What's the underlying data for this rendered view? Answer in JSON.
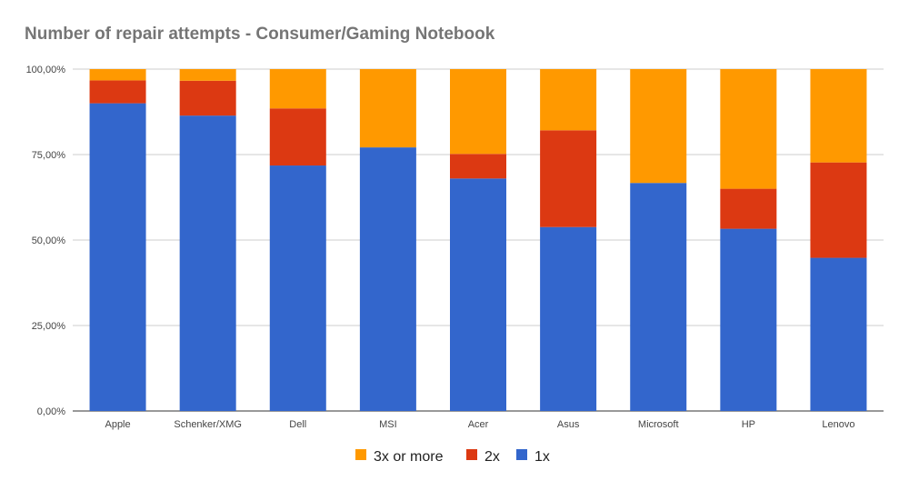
{
  "chart_data": {
    "type": "bar",
    "stacked": true,
    "title": "Number of repair attempts - Consumer/Gaming Notebook",
    "xlabel": "",
    "ylabel": "",
    "ylim": [
      0,
      100
    ],
    "y_ticks": [
      {
        "value": 0,
        "label": "0,00%"
      },
      {
        "value": 25,
        "label": "25,00%"
      },
      {
        "value": 50,
        "label": "50,00%"
      },
      {
        "value": 75,
        "label": "75,00%"
      },
      {
        "value": 100,
        "label": "100,00%"
      }
    ],
    "grid": true,
    "legend_position": "bottom",
    "categories": [
      "Apple",
      "Schenker/XMG",
      "Dell",
      "MSI",
      "Acer",
      "Asus",
      "Microsoft",
      "HP",
      "Lenovo"
    ],
    "series": [
      {
        "name": "1x",
        "color": "#3366cc",
        "values": [
          90.0,
          86.4,
          71.8,
          77.1,
          68.0,
          53.8,
          66.7,
          53.3,
          44.8
        ]
      },
      {
        "name": "2x",
        "color": "#dc3912",
        "values": [
          6.7,
          10.2,
          16.7,
          0.0,
          7.2,
          28.3,
          0.0,
          11.7,
          27.9
        ]
      },
      {
        "name": "3x or more",
        "color": "#ff9900",
        "values": [
          3.3,
          3.4,
          11.5,
          22.9,
          24.8,
          17.9,
          33.3,
          35.0,
          27.3
        ]
      }
    ],
    "legend_order": [
      "3x or more",
      "2x",
      "1x"
    ]
  }
}
